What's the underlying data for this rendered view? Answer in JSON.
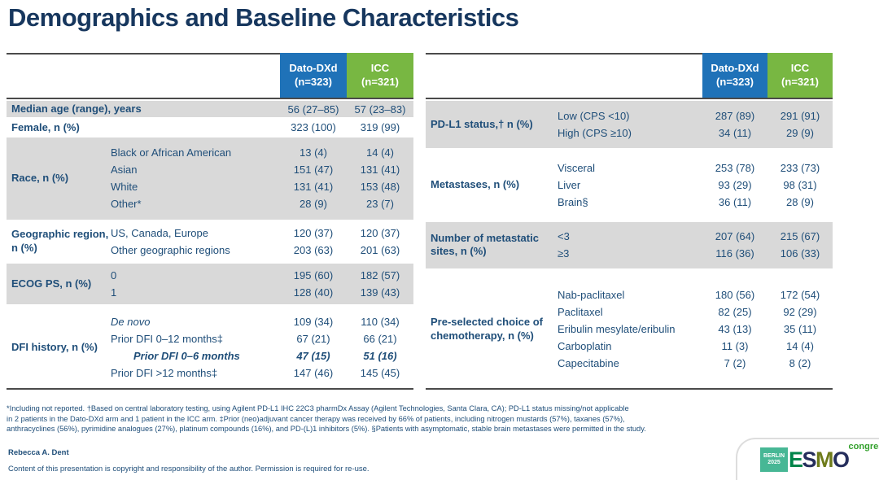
{
  "title": "Demographics and Baseline Characteristics",
  "arms": [
    {
      "name": "Dato-DXd",
      "n": "(n=323)"
    },
    {
      "name": "ICC",
      "n": "(n=321)"
    }
  ],
  "colors": {
    "arm1": "#1F72B8",
    "arm2": "#78B742",
    "row_shade": "#D9D9D9",
    "text": "#1F4E79",
    "title": "#17375E",
    "rule": "#4a4a4a"
  },
  "tables": [
    {
      "groups": [
        {
          "label": "Median age (range), years",
          "shaded": true,
          "rows": [
            {
              "sub": "",
              "v1": "56 (27–85)",
              "v2": "57 (23–83)"
            }
          ]
        },
        {
          "label": "Female, n (%)",
          "shaded": false,
          "rows": [
            {
              "sub": "",
              "v1": "323 (100)",
              "v2": "319 (99)"
            }
          ]
        },
        {
          "label": "Race, n (%)",
          "shaded": true,
          "rows": [
            {
              "sub": "Black or African American",
              "v1": "13 (4)",
              "v2": "14 (4)"
            },
            {
              "sub": "Asian",
              "v1": "151 (47)",
              "v2": "131 (41)"
            },
            {
              "sub": "White",
              "v1": "131 (41)",
              "v2": "153 (48)"
            },
            {
              "sub": "Other*",
              "v1": "28 (9)",
              "v2": "23 (7)"
            }
          ]
        },
        {
          "label": "Geographic region, n (%)",
          "shaded": false,
          "rows": [
            {
              "sub": "US, Canada, Europe",
              "v1": "120 (37)",
              "v2": "120 (37)"
            },
            {
              "sub": "Other geographic regions",
              "v1": "203 (63)",
              "v2": "201 (63)"
            }
          ]
        },
        {
          "label": "ECOG PS, n (%)",
          "shaded": true,
          "rows": [
            {
              "sub": "0",
              "v1": "195 (60)",
              "v2": "182 (57)"
            },
            {
              "sub": "1",
              "v1": "128 (40)",
              "v2": "139 (43)"
            }
          ]
        },
        {
          "label": "DFI history, n (%)",
          "shaded": false,
          "rows": [
            {
              "sub": "De novo",
              "style": "italic",
              "v1": "109 (34)",
              "v2": "110 (34)"
            },
            {
              "sub": "Prior DFI 0–12 months‡",
              "v1": "67 (21)",
              "v2": "66 (21)"
            },
            {
              "sub": "Prior DFI 0–6 months",
              "style": "boldItalic",
              "v1": "47 (15)",
              "v2": "51 (16)"
            },
            {
              "sub": "Prior DFI >12 months‡",
              "v1": "147 (46)",
              "v2": "145 (45)"
            }
          ]
        }
      ]
    },
    {
      "groups": [
        {
          "label": "PD-L1 status,† n (%)",
          "shaded": true,
          "rows": [
            {
              "sub": "Low (CPS <10)",
              "v1": "287 (89)",
              "v2": "291 (91)"
            },
            {
              "sub": "High (CPS ≥10)",
              "v1": "34 (11)",
              "v2": "29 (9)"
            }
          ]
        },
        {
          "label": "Metastases, n (%)",
          "shaded": false,
          "rows": [
            {
              "sub": "Visceral",
              "v1": "253 (78)",
              "v2": "233 (73)"
            },
            {
              "sub": "Liver",
              "v1": "93 (29)",
              "v2": "98 (31)"
            },
            {
              "sub": "Brain§",
              "v1": "36 (11)",
              "v2": "28 (9)"
            }
          ]
        },
        {
          "label": "Number of metastatic sites, n (%)",
          "shaded": true,
          "rows": [
            {
              "sub": "<3",
              "v1": "207 (64)",
              "v2": "215 (67)"
            },
            {
              "sub": "≥3",
              "v1": "116 (36)",
              "v2": "106 (33)"
            }
          ]
        },
        {
          "label": "Pre-selected choice of chemotherapy, n (%)",
          "shaded": false,
          "rows": [
            {
              "sub": "Nab-paclitaxel",
              "v1": "180 (56)",
              "v2": "172 (54)"
            },
            {
              "sub": "Paclitaxel",
              "v1": "82 (25)",
              "v2": "92 (29)"
            },
            {
              "sub": "Eribulin mesylate/eribulin",
              "v1": "43 (13)",
              "v2": "35 (11)"
            },
            {
              "sub": "Carboplatin",
              "v1": "11 (3)",
              "v2": "14 (4)"
            },
            {
              "sub": "Capecitabine",
              "v1": "7 (2)",
              "v2": "8 (2)"
            }
          ]
        }
      ]
    }
  ],
  "footnotes": [
    "*Including not reported. †Based on central laboratory testing, using Agilent PD-L1 IHC 22C3 pharmDx Assay (Agilent Technologies, Santa Clara, CA); PD-L1 status missing/not applicable",
    "in 2 patients in the Dato-DXd arm and 1 patient in the ICC arm. ‡Prior (neo)adjuvant cancer therapy was received by 66% of patients, including nitrogen mustards (57%), taxanes (57%),",
    "anthracyclines (56%), pyrimidine analogues (27%), platinum compounds (16%), and PD-(L)1 inhibitors (5%). §Patients with asymptomatic, stable brain metastases were permitted in the study."
  ],
  "presenter": "Rebecca A. Dent",
  "copyright": "Content of this presentation is copyright and responsibility of the author. Permission is required for re-use.",
  "logo": {
    "badge_line1": "BERLIN",
    "badge_line2": "2025",
    "badge_color": "#47B795",
    "letters": [
      {
        "ch": "E",
        "color": "#00854A"
      },
      {
        "ch": "S",
        "color": "#252E5C"
      },
      {
        "ch": "M",
        "color": "#6E7B1A"
      },
      {
        "ch": "O",
        "color": "#252E5C"
      }
    ],
    "congress": "congress",
    "congress_color": "#33A02C"
  }
}
